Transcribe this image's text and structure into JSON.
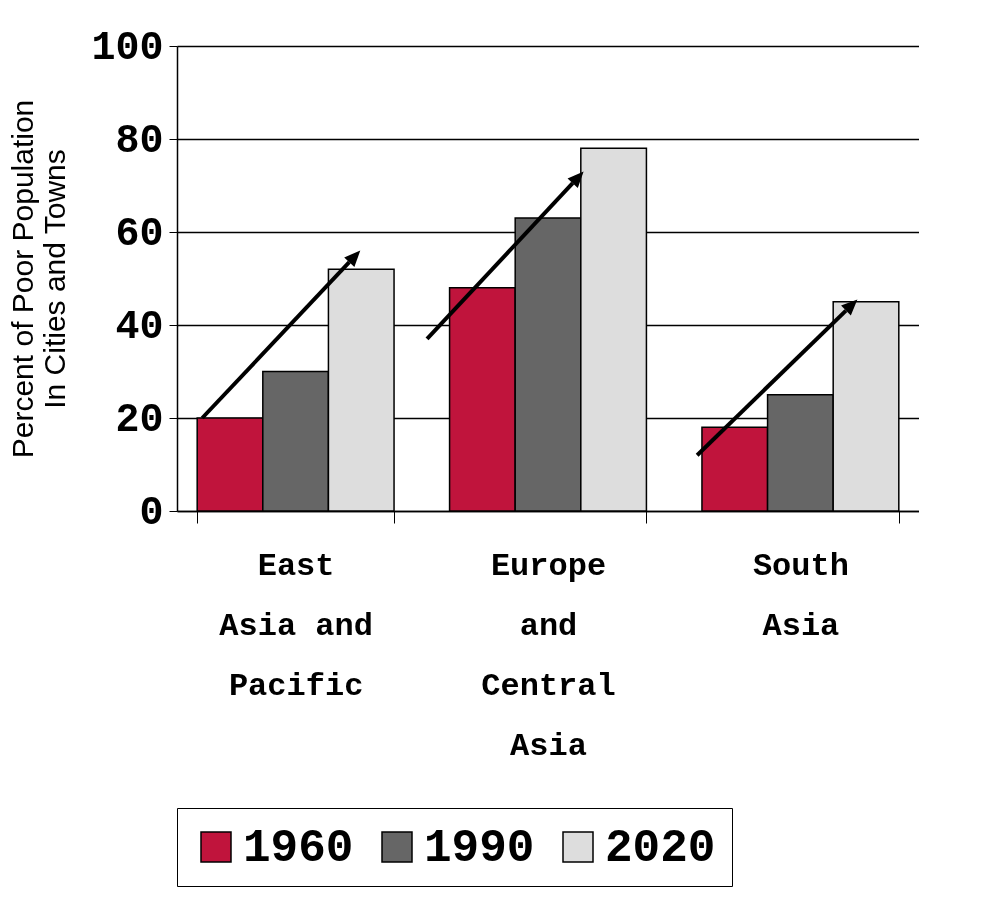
{
  "chart_data": {
    "type": "bar",
    "ylabel": "Percent of Poor Population In Cities and Towns",
    "categories": [
      "East Asia and Pacific",
      "Europe and Central Asia",
      "South Asia"
    ],
    "series": [
      {
        "name": "1960",
        "color": "#c0143c",
        "values": [
          20,
          48,
          18
        ]
      },
      {
        "name": "1990",
        "color": "#666666",
        "values": [
          30,
          63,
          25
        ]
      },
      {
        "name": "2020",
        "color": "#dddddd",
        "values": [
          52,
          78,
          45
        ]
      }
    ],
    "ylim": [
      0,
      100
    ],
    "yticks": [
      0,
      20,
      40,
      60,
      80,
      100
    ],
    "grid": "y",
    "legend": "bottom"
  }
}
